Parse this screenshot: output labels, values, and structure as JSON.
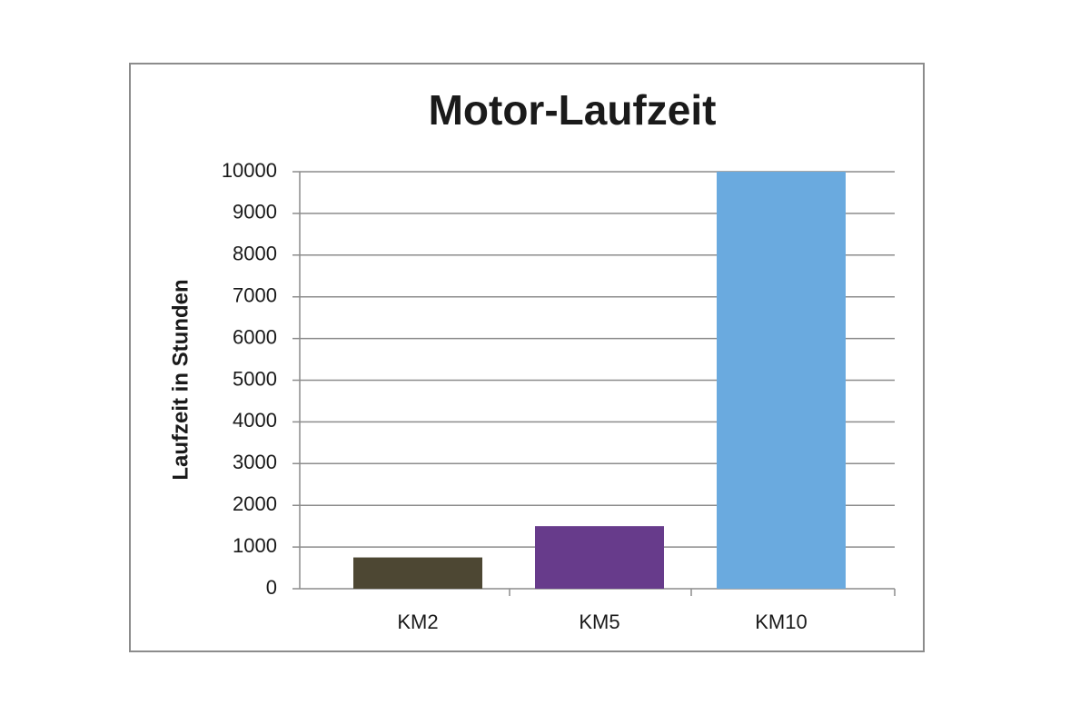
{
  "chart_data": {
    "type": "bar",
    "title": "Motor-Laufzeit",
    "y_label": "Laufzeit in Stunden",
    "categories": [
      "KM2",
      "KM5",
      "KM10"
    ],
    "values": [
      750,
      1500,
      10000
    ],
    "colors": [
      "#4d4733",
      "#673b8b",
      "#6aaadf"
    ],
    "ylim": [
      0,
      10000
    ],
    "yticks": [
      0,
      1000,
      2000,
      3000,
      4000,
      5000,
      6000,
      7000,
      8000,
      9000,
      10000
    ],
    "grid": true
  }
}
